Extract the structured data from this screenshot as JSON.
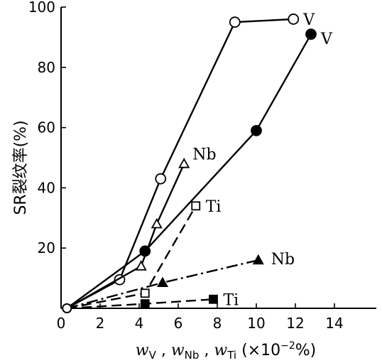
{
  "chart_data": {
    "type": "line",
    "title": "",
    "ylabel": "SR裂纹率(%)",
    "xlabel_parts": [
      "w",
      "V",
      " , ",
      "w",
      "Nb",
      " , ",
      "w",
      "Ti",
      " (×10",
      "−2",
      "%)"
    ],
    "xlim": [
      0,
      16
    ],
    "ylim": [
      0,
      100
    ],
    "x_ticks": [
      0,
      2,
      4,
      6,
      8,
      10,
      12,
      14
    ],
    "y_ticks": [
      20,
      40,
      60,
      80,
      100
    ],
    "x_tick_labels": [
      "0",
      "2",
      "4",
      "6",
      "8",
      "10",
      "12",
      "14"
    ],
    "y_tick_labels": [
      "20",
      "40",
      "60",
      "80",
      "100"
    ],
    "grid": false,
    "legend": "none",
    "series": [
      {
        "name": "V",
        "marker": "circle-open",
        "line": "solid",
        "x": [
          0.3,
          3.0,
          5.1,
          8.9,
          11.9
        ],
        "y": [
          0,
          9.5,
          43,
          95,
          96
        ]
      },
      {
        "name": "V",
        "marker": "circle-filled",
        "line": "solid",
        "x": [
          0.3,
          4.3,
          10.0,
          12.8
        ],
        "y": [
          0,
          19,
          59,
          91
        ]
      },
      {
        "name": "Nb",
        "marker": "triangle-open",
        "line": "solid",
        "x": [
          0.3,
          4.1,
          4.9,
          6.3
        ],
        "y": [
          0,
          14,
          28,
          48
        ]
      },
      {
        "name": "Ti",
        "marker": "square-open",
        "line": "dashed",
        "x": [
          0.3,
          4.3,
          6.9
        ],
        "y": [
          0,
          5,
          34
        ]
      },
      {
        "name": "Nb",
        "marker": "triangle-filled",
        "line": "dash-dot",
        "x": [
          0.3,
          5.2,
          10.1
        ],
        "y": [
          0,
          8.5,
          16
        ]
      },
      {
        "name": "Ti",
        "marker": "square-filled",
        "line": "dashed",
        "x": [
          0.3,
          4.3,
          7.8
        ],
        "y": [
          0,
          1.5,
          3
        ]
      }
    ]
  }
}
